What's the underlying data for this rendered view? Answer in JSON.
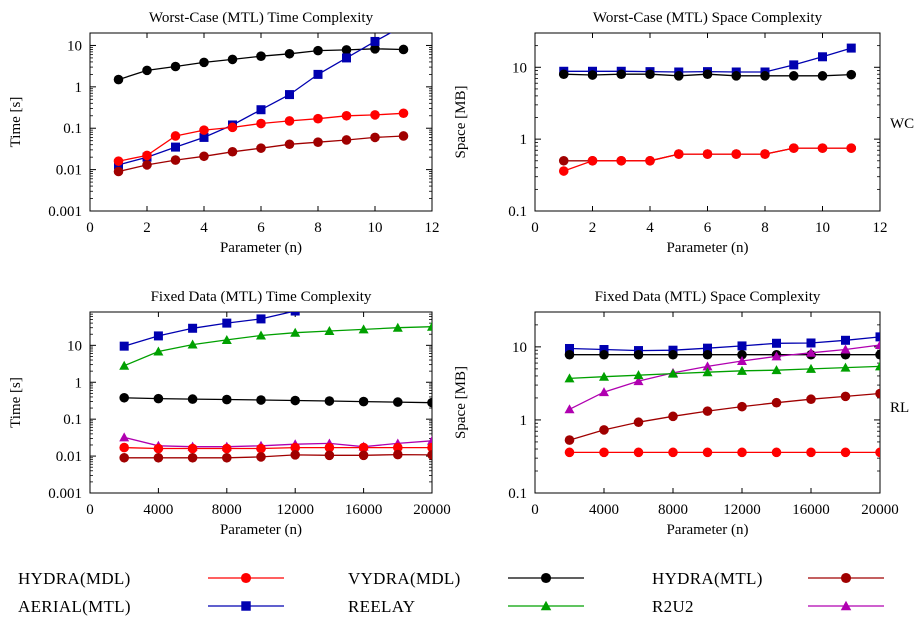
{
  "figure": {
    "side_labels": [
      "WC",
      "RL"
    ]
  },
  "legend": [
    {
      "label": "HYDRA(MDL)",
      "color": "#ff0000",
      "marker": "circle"
    },
    {
      "label": "VYDRA(MDL)",
      "color": "#000000",
      "marker": "circle"
    },
    {
      "label": "HYDRA(MTL)",
      "color": "#a00000",
      "marker": "circle"
    },
    {
      "label": "AERIAL(MTL)",
      "color": "#0000b0",
      "marker": "square"
    },
    {
      "label": "REELAY",
      "color": "#00a000",
      "marker": "triangle"
    },
    {
      "label": "R2U2",
      "color": "#b000b0",
      "marker": "triangle"
    }
  ],
  "chart_data": [
    {
      "type": "line",
      "title": "Worst-Case (MTL) Time Complexity",
      "xlabel": "Parameter (n)",
      "ylabel": "Time [s]",
      "xlim": [
        0,
        12
      ],
      "ylim": [
        0.001,
        20
      ],
      "yscale": "log",
      "xticks": [
        0,
        2,
        4,
        6,
        8,
        10,
        12
      ],
      "xtick_labels": [
        "0",
        "2",
        "4",
        "6",
        "8",
        "10",
        "12"
      ],
      "yticks": [
        0.001,
        0.01,
        0.1,
        1,
        10
      ],
      "ytick_labels": [
        "0.001",
        "0.01",
        "0.1",
        "1",
        "10"
      ],
      "series": [
        {
          "name": "VYDRA(MDL)",
          "x": [
            1,
            2,
            3,
            4,
            5,
            6,
            7,
            8,
            9,
            10,
            11
          ],
          "values": [
            1.5,
            2.5,
            3.1,
            3.9,
            4.6,
            5.5,
            6.3,
            7.5,
            7.8,
            8.3,
            8.0
          ]
        },
        {
          "name": "AERIAL(MTL)",
          "x": [
            1,
            2,
            3,
            4,
            5,
            6,
            7,
            8,
            9,
            10,
            11
          ],
          "values": [
            0.013,
            0.02,
            0.035,
            0.06,
            0.12,
            0.28,
            0.65,
            2.0,
            5.0,
            12.5,
            30
          ]
        },
        {
          "name": "HYDRA(MDL)",
          "x": [
            1,
            2,
            3,
            4,
            5,
            6,
            7,
            8,
            9,
            10,
            11
          ],
          "values": [
            0.016,
            0.022,
            0.065,
            0.09,
            0.105,
            0.13,
            0.15,
            0.17,
            0.2,
            0.21,
            0.23
          ]
        },
        {
          "name": "HYDRA(MTL)",
          "x": [
            1,
            2,
            3,
            4,
            5,
            6,
            7,
            8,
            9,
            10,
            11
          ],
          "values": [
            0.009,
            0.013,
            0.017,
            0.021,
            0.027,
            0.033,
            0.041,
            0.046,
            0.052,
            0.06,
            0.065
          ]
        }
      ]
    },
    {
      "type": "line",
      "title": "Worst-Case (MTL) Space Complexity",
      "xlabel": "Parameter (n)",
      "ylabel": "Space [MB]",
      "xlim": [
        0,
        12
      ],
      "ylim": [
        0.1,
        30
      ],
      "yscale": "log",
      "xticks": [
        0,
        2,
        4,
        6,
        8,
        10,
        12
      ],
      "xtick_labels": [
        "0",
        "2",
        "4",
        "6",
        "8",
        "10",
        "12"
      ],
      "yticks": [
        0.1,
        1,
        10
      ],
      "ytick_labels": [
        "0.1",
        "1",
        "10"
      ],
      "series": [
        {
          "name": "AERIAL(MTL)",
          "x": [
            1,
            2,
            3,
            4,
            5,
            6,
            7,
            8,
            9,
            10,
            11
          ],
          "values": [
            8.8,
            8.8,
            8.8,
            8.7,
            8.6,
            8.7,
            8.6,
            8.6,
            10.8,
            14.0,
            18.5
          ]
        },
        {
          "name": "VYDRA(MDL)",
          "x": [
            1,
            2,
            3,
            4,
            5,
            6,
            7,
            8,
            9,
            10,
            11
          ],
          "values": [
            8.0,
            7.8,
            8.0,
            8.0,
            7.6,
            8.0,
            7.6,
            7.6,
            7.6,
            7.6,
            7.9
          ]
        },
        {
          "name": "HYDRA(MTL)",
          "x": [
            1,
            2,
            3,
            4,
            5,
            6,
            7,
            8,
            9,
            10,
            11
          ],
          "values": [
            0.5,
            0.5,
            0.5,
            0.5,
            0.62,
            0.62,
            0.62,
            0.62,
            0.75,
            0.75,
            0.75
          ]
        },
        {
          "name": "HYDRA(MDL)",
          "x": [
            1,
            2,
            3,
            4,
            5,
            6,
            7,
            8,
            9,
            10,
            11
          ],
          "values": [
            0.36,
            0.5,
            0.5,
            0.5,
            0.62,
            0.62,
            0.62,
            0.62,
            0.75,
            0.75,
            0.75
          ]
        }
      ]
    },
    {
      "type": "line",
      "title": "Fixed Data (MTL) Time Complexity",
      "xlabel": "Parameter (n)",
      "ylabel": "Time [s]",
      "xlim": [
        0,
        20000
      ],
      "ylim": [
        0.001,
        80
      ],
      "yscale": "log",
      "xticks": [
        0,
        4000,
        8000,
        12000,
        16000,
        20000
      ],
      "xtick_labels": [
        "0",
        "4000",
        "8000",
        "12000",
        "16000",
        "20000"
      ],
      "yticks": [
        0.001,
        0.01,
        0.1,
        1,
        10
      ],
      "ytick_labels": [
        "0.001",
        "0.01",
        "0.1",
        "1",
        "10"
      ],
      "series": [
        {
          "name": "AERIAL(MTL)",
          "x": [
            2000,
            4000,
            6000,
            8000,
            10000,
            12000
          ],
          "values": [
            9.5,
            18,
            29,
            40,
            52,
            85
          ]
        },
        {
          "name": "REELAY",
          "x": [
            2000,
            4000,
            6000,
            8000,
            10000,
            12000,
            14000,
            16000,
            18000,
            20000
          ],
          "values": [
            2.8,
            6.8,
            10.5,
            14,
            18.5,
            22,
            24.5,
            27,
            30,
            32
          ]
        },
        {
          "name": "VYDRA(MDL)",
          "x": [
            2000,
            4000,
            6000,
            8000,
            10000,
            12000,
            14000,
            16000,
            18000,
            20000
          ],
          "values": [
            0.38,
            0.36,
            0.35,
            0.34,
            0.33,
            0.32,
            0.31,
            0.3,
            0.29,
            0.28
          ]
        },
        {
          "name": "R2U2",
          "x": [
            2000,
            4000,
            6000,
            8000,
            10000,
            12000,
            14000,
            16000,
            18000,
            20000
          ],
          "values": [
            0.032,
            0.019,
            0.018,
            0.018,
            0.019,
            0.021,
            0.022,
            0.018,
            0.022,
            0.026
          ]
        },
        {
          "name": "HYDRA(MDL)",
          "x": [
            2000,
            4000,
            6000,
            8000,
            10000,
            12000,
            14000,
            16000,
            18000,
            20000
          ],
          "values": [
            0.017,
            0.016,
            0.016,
            0.016,
            0.016,
            0.017,
            0.017,
            0.017,
            0.017,
            0.017
          ]
        },
        {
          "name": "HYDRA(MTL)",
          "x": [
            2000,
            4000,
            6000,
            8000,
            10000,
            12000,
            14000,
            16000,
            18000,
            20000
          ],
          "values": [
            0.009,
            0.009,
            0.009,
            0.009,
            0.0095,
            0.0108,
            0.0105,
            0.0105,
            0.011,
            0.0108
          ]
        }
      ]
    },
    {
      "type": "line",
      "title": "Fixed Data (MTL) Space Complexity",
      "xlabel": "Parameter (n)",
      "ylabel": "Space [MB]",
      "xlim": [
        0,
        20000
      ],
      "ylim": [
        0.1,
        30
      ],
      "yscale": "log",
      "xticks": [
        0,
        4000,
        8000,
        12000,
        16000,
        20000
      ],
      "xtick_labels": [
        "0",
        "4000",
        "8000",
        "12000",
        "16000",
        "20000"
      ],
      "yticks": [
        0.1,
        1,
        10
      ],
      "ytick_labels": [
        "0.1",
        "1",
        "10"
      ],
      "series": [
        {
          "name": "AERIAL(MTL)",
          "x": [
            2000,
            4000,
            6000,
            8000,
            10000,
            12000,
            14000,
            16000,
            18000,
            20000
          ],
          "values": [
            9.5,
            9.2,
            8.9,
            9.0,
            9.6,
            10.3,
            11.2,
            11.3,
            12.3,
            13.7
          ]
        },
        {
          "name": "VYDRA(MDL)",
          "x": [
            2000,
            4000,
            6000,
            8000,
            10000,
            12000,
            14000,
            16000,
            18000,
            20000
          ],
          "values": [
            7.8,
            7.8,
            7.8,
            7.8,
            7.8,
            7.8,
            7.8,
            7.8,
            7.8,
            7.8
          ]
        },
        {
          "name": "R2U2",
          "x": [
            2000,
            4000,
            6000,
            8000,
            10000,
            12000,
            14000,
            16000,
            18000,
            20000
          ],
          "values": [
            1.4,
            2.4,
            3.4,
            4.4,
            5.4,
            6.4,
            7.4,
            8.3,
            9.2,
            10.6
          ]
        },
        {
          "name": "REELAY",
          "x": [
            2000,
            4000,
            6000,
            8000,
            10000,
            12000,
            14000,
            16000,
            18000,
            20000
          ],
          "values": [
            3.7,
            3.9,
            4.1,
            4.3,
            4.5,
            4.7,
            4.8,
            5.0,
            5.2,
            5.4
          ]
        },
        {
          "name": "HYDRA(MTL)",
          "x": [
            2000,
            4000,
            6000,
            8000,
            10000,
            12000,
            14000,
            16000,
            18000,
            20000
          ],
          "values": [
            0.53,
            0.73,
            0.93,
            1.12,
            1.32,
            1.52,
            1.72,
            1.92,
            2.1,
            2.3
          ]
        },
        {
          "name": "HYDRA(MDL)",
          "x": [
            2000,
            4000,
            6000,
            8000,
            10000,
            12000,
            14000,
            16000,
            18000,
            20000
          ],
          "values": [
            0.36,
            0.36,
            0.36,
            0.36,
            0.36,
            0.36,
            0.36,
            0.36,
            0.36,
            0.36
          ]
        }
      ]
    }
  ]
}
